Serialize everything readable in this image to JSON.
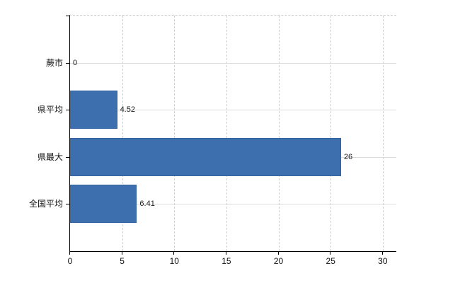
{
  "chart": {
    "background_color": "#ffffff",
    "bar_color": "#3d6eae",
    "bar_border_color": "#35639f",
    "axis_color": "#000000",
    "gridline_color": "#d9ddd9",
    "top_border_color": "#c9c9c9",
    "text_color": "#111111"
  },
  "chart_data": {
    "type": "bar",
    "orientation": "horizontal",
    "title": "",
    "xlabel": "",
    "ylabel": "",
    "categories": [
      "蕨市",
      "県平均",
      "県最大",
      "全国平均"
    ],
    "values": [
      0,
      4.52,
      26,
      6.41
    ],
    "data_labels": [
      "0",
      "4.52",
      "26",
      "6.41"
    ],
    "xlim": [
      0,
      31.3
    ],
    "xticks": [
      0,
      5,
      10,
      15,
      20,
      25,
      30
    ],
    "xtick_labels": [
      "0",
      "5",
      "10",
      "15",
      "20",
      "25",
      "30"
    ],
    "grid": "on",
    "legend": "none"
  }
}
